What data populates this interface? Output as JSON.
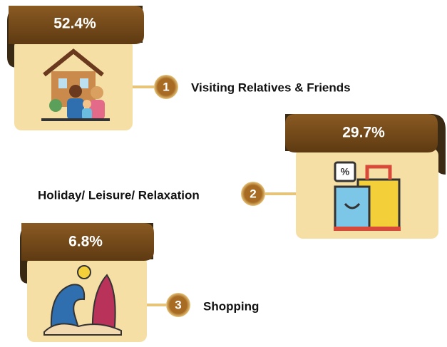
{
  "items": [
    {
      "percent": "52.4%",
      "number": "1",
      "label": "Visiting Relatives & Friends"
    },
    {
      "percent": "29.7%",
      "number": "2",
      "label": "Holiday/ Leisure/ Relaxation"
    },
    {
      "percent": "6.8%",
      "number": "3",
      "label": "Shopping"
    }
  ]
}
